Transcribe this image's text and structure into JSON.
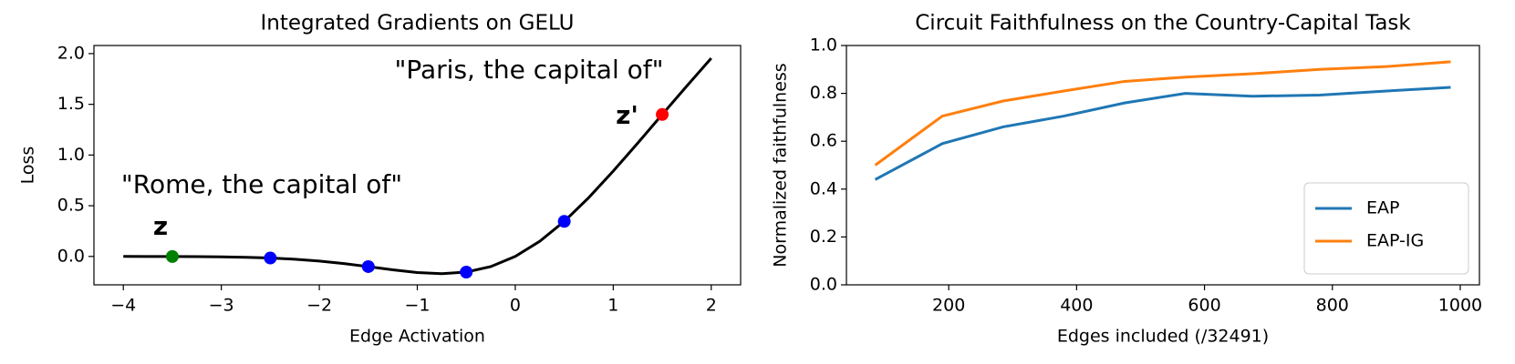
{
  "chart_data": [
    {
      "type": "line",
      "title": "Integrated Gradients on GELU",
      "xlabel": "Edge Activation",
      "ylabel": "Loss",
      "x": [
        -4,
        -3.75,
        -3.5,
        -3.25,
        -3,
        -2.75,
        -2.5,
        -2.25,
        -2,
        -1.75,
        -1.5,
        -1.25,
        -1,
        -0.75,
        -0.5,
        -0.25,
        0,
        0.25,
        0.5,
        0.75,
        1,
        1.25,
        1.5,
        1.75,
        2
      ],
      "series": [
        {
          "color": "#000000",
          "values": [
            -0.0001,
            -0.0003,
            -0.0008,
            -0.0019,
            -0.004,
            -0.0082,
            -0.0155,
            -0.0275,
            -0.0455,
            -0.0701,
            -0.1002,
            -0.1321,
            -0.1587,
            -0.17,
            -0.1543,
            -0.1003,
            0,
            0.1497,
            0.3457,
            0.58,
            0.8413,
            1.1179,
            1.3998,
            1.6799,
            1.9545
          ]
        }
      ],
      "points": {
        "x": [
          -3.5,
          -2.5,
          -1.5,
          -0.5,
          0.5,
          1.5
        ],
        "values": [
          -0.0008,
          -0.0155,
          -0.1002,
          -0.1543,
          0.3457,
          1.3998
        ],
        "colors": [
          "#008000",
          "#0000ff",
          "#0000ff",
          "#0000ff",
          "#0000ff",
          "#ff0000"
        ]
      },
      "annotations": [
        "\"Paris, the capital of\"",
        "z'",
        "\"Rome, the capital of\"",
        "z"
      ],
      "xlim": [
        -4.3,
        2.3
      ],
      "ylim": [
        -0.28,
        2.08
      ],
      "xticks": [
        {
          "value": -4,
          "label": "−4"
        },
        {
          "value": -3,
          "label": "−3"
        },
        {
          "value": -2,
          "label": "−2"
        },
        {
          "value": -1,
          "label": "−1"
        },
        0,
        1,
        2
      ],
      "yticks": [
        {
          "value": 0,
          "label": "0.0"
        },
        {
          "value": 0.5,
          "label": "0.5"
        },
        {
          "value": 1,
          "label": "1.0"
        },
        {
          "value": 1.5,
          "label": "1.5"
        },
        {
          "value": 2,
          "label": "2.0"
        }
      ]
    },
    {
      "type": "line",
      "title": "Circuit Faithfulness on the Country-Capital Task",
      "xlabel": "Edges included (/32491)",
      "ylabel": "Normalized faithfulness",
      "x": [
        85,
        190,
        285,
        380,
        475,
        570,
        675,
        780,
        885,
        985
      ],
      "series": [
        {
          "name": "EAP",
          "color": "#1f77b4",
          "values": [
            0.44,
            0.59,
            0.66,
            0.705,
            0.76,
            0.8,
            0.788,
            0.793,
            0.81,
            0.825
          ]
        },
        {
          "name": "EAP-IG",
          "color": "#ff7f0e",
          "values": [
            0.5,
            0.705,
            0.768,
            0.81,
            0.85,
            0.868,
            0.882,
            0.9,
            0.912,
            0.932
          ]
        }
      ],
      "legend": "lower right",
      "xlim": [
        40,
        1030
      ],
      "ylim": [
        0,
        1
      ],
      "xticks": [
        200,
        400,
        600,
        800,
        1000
      ],
      "yticks": [
        {
          "value": 0,
          "label": "0.0"
        },
        {
          "value": 0.2,
          "label": "0.2"
        },
        {
          "value": 0.4,
          "label": "0.4"
        },
        {
          "value": 0.6,
          "label": "0.6"
        },
        {
          "value": 0.8,
          "label": "0.8"
        },
        {
          "value": 1,
          "label": "1.0"
        }
      ]
    }
  ]
}
